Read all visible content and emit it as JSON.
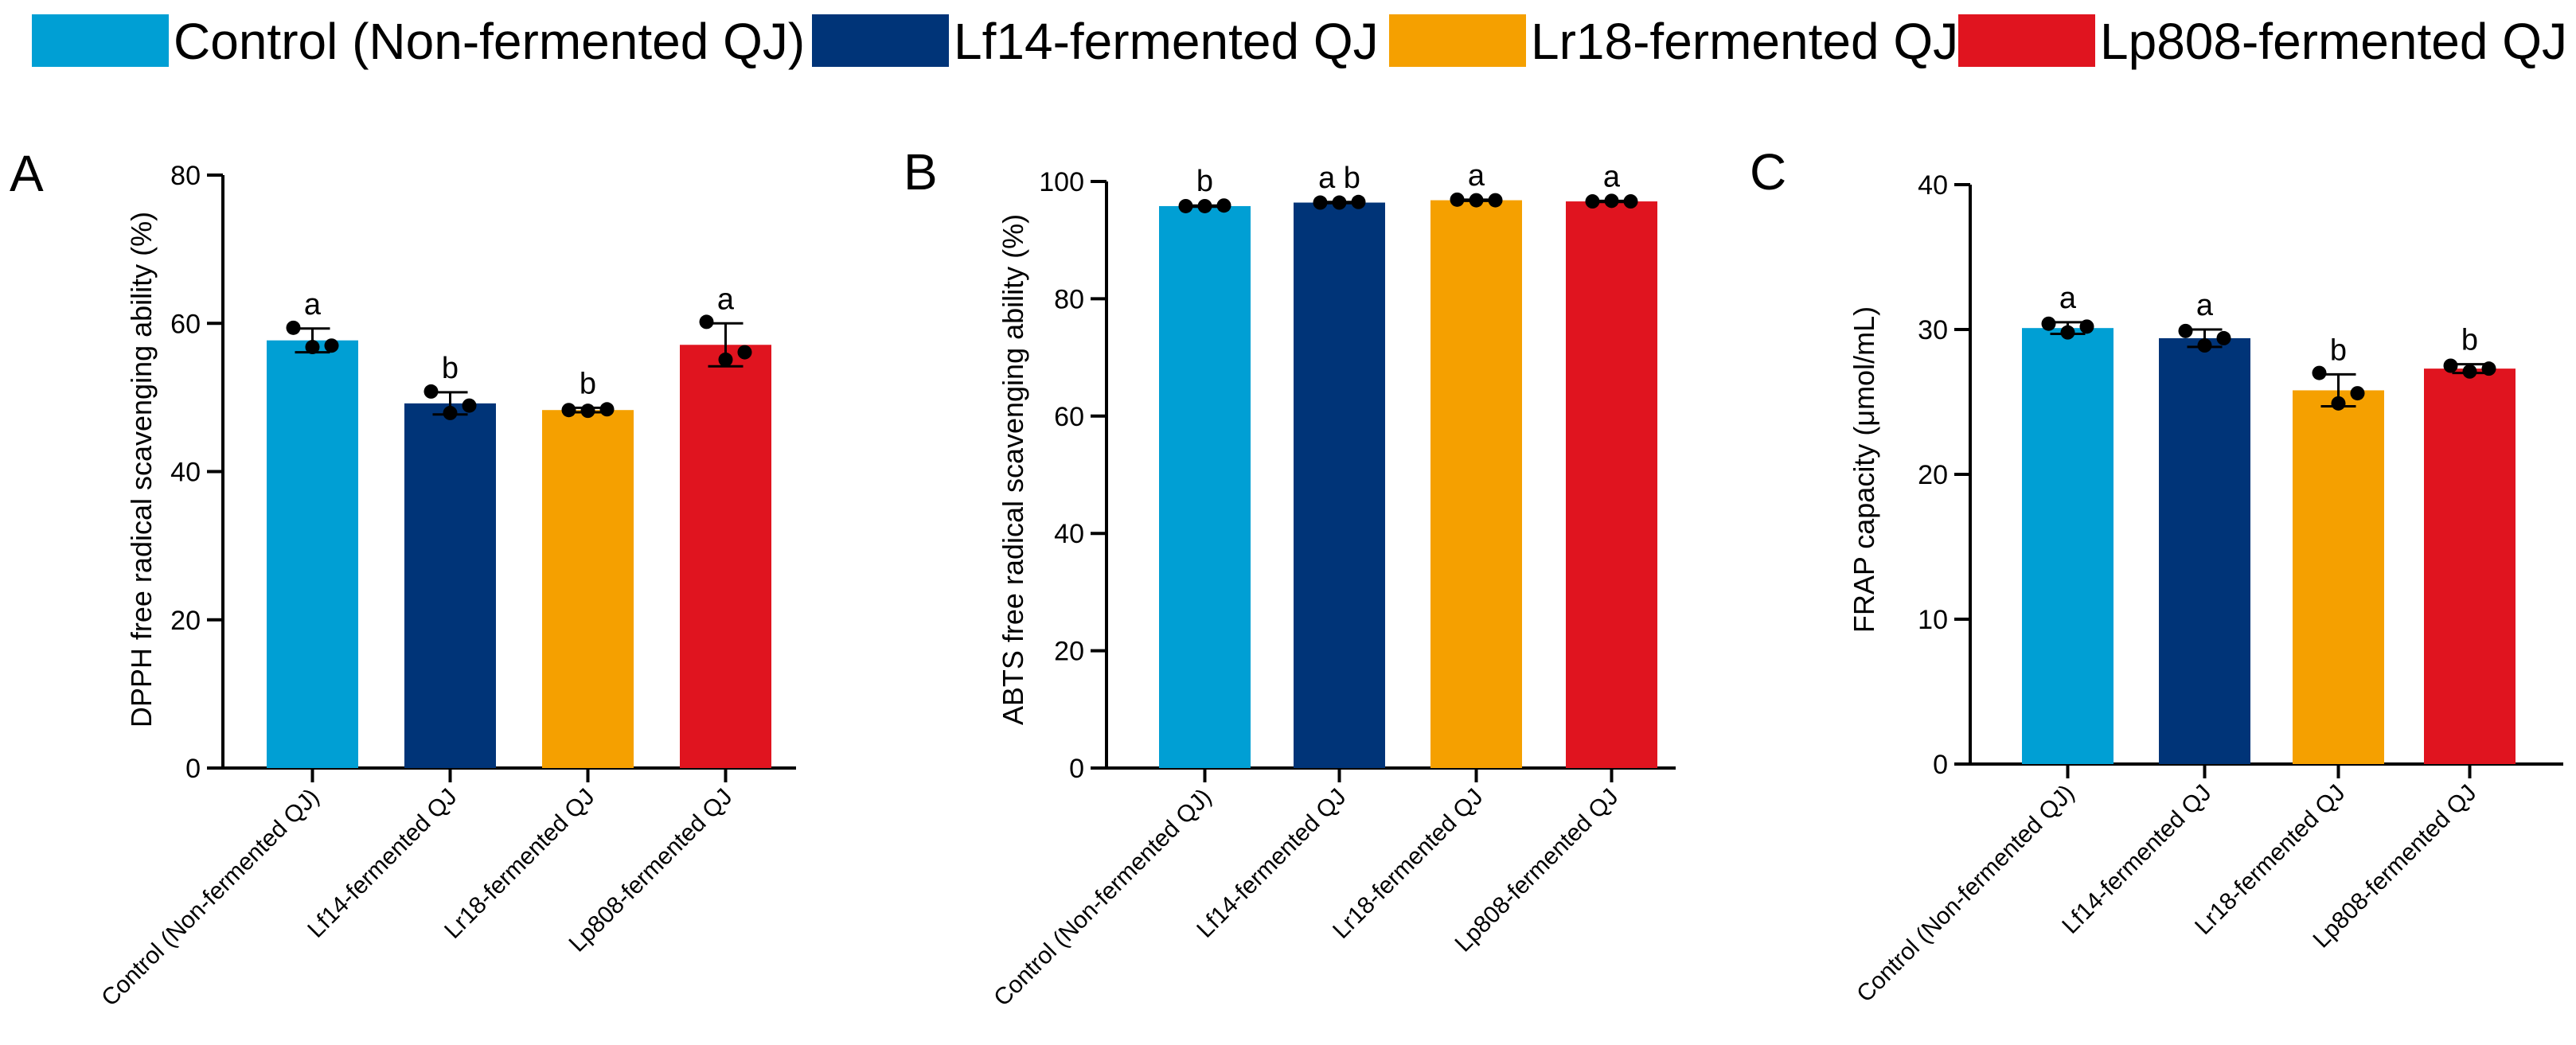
{
  "legend": {
    "items": [
      {
        "label": "Control (Non-fermented QJ)",
        "color": "#009fd4"
      },
      {
        "label": "Lf14-fermented QJ",
        "color": "#003478"
      },
      {
        "label": "Lr18-fermented QJ",
        "color": "#f5a000"
      },
      {
        "label": "Lp808-fermented QJ",
        "color": "#e0141f"
      }
    ]
  },
  "chart_data": [
    {
      "type": "bar",
      "panel_label": "A",
      "title": "",
      "ylabel": "DPPH free radical scavenging ability (%)",
      "xlabel": "",
      "ylim": [
        0,
        80
      ],
      "yticks": [
        0,
        20,
        40,
        60,
        80
      ],
      "categories": [
        "Control (Non-fermented QJ)",
        "Lf14-fermented QJ",
        "Lr18-fermented QJ",
        "Lp808-fermented QJ"
      ],
      "values": [
        57.7,
        49.2,
        48.3,
        57.1
      ],
      "errors": [
        1.6,
        1.5,
        0.3,
        2.9
      ],
      "points": [
        [
          59.4,
          56.8,
          57.0
        ],
        [
          50.8,
          47.9,
          48.9
        ],
        [
          48.3,
          48.2,
          48.4
        ],
        [
          60.2,
          55.1,
          56.1
        ]
      ],
      "letters": [
        "a",
        "b",
        "b",
        "a"
      ]
    },
    {
      "type": "bar",
      "panel_label": "B",
      "title": "",
      "ylabel": "ABTS free radical scavenging ability (%)",
      "xlabel": "",
      "ylim": [
        0,
        100
      ],
      "yticks": [
        0,
        20,
        40,
        60,
        80,
        100
      ],
      "categories": [
        "Control (Non-fermented QJ)",
        "Lf14-fermented QJ",
        "Lr18-fermented QJ",
        "Lp808-fermented QJ"
      ],
      "values": [
        95.8,
        96.4,
        96.8,
        96.6
      ],
      "errors": [
        0.1,
        0.1,
        0.1,
        0.1
      ],
      "points": [
        [
          95.8,
          95.8,
          95.9
        ],
        [
          96.4,
          96.4,
          96.5
        ],
        [
          96.9,
          96.8,
          96.8
        ],
        [
          96.6,
          96.7,
          96.6
        ]
      ],
      "letters": [
        "b",
        "a b",
        "a",
        "a"
      ]
    },
    {
      "type": "bar",
      "panel_label": "C",
      "title": "",
      "ylabel": "FRAP capacity (μmol/mL)",
      "xlabel": "",
      "ylim": [
        0,
        40
      ],
      "yticks": [
        0,
        10,
        20,
        30,
        40
      ],
      "categories": [
        "Control (Non-fermented QJ)",
        "Lf14-fermented QJ",
        "Lr18-fermented QJ",
        "Lp808-fermented QJ"
      ],
      "values": [
        30.1,
        29.4,
        25.8,
        27.3
      ],
      "errors": [
        0.4,
        0.6,
        1.1,
        0.3
      ],
      "points": [
        [
          30.4,
          29.8,
          30.2
        ],
        [
          29.9,
          28.9,
          29.4
        ],
        [
          27.0,
          24.9,
          25.6
        ],
        [
          27.5,
          27.1,
          27.3
        ]
      ],
      "letters": [
        "a",
        "a",
        "b",
        "b"
      ]
    }
  ]
}
